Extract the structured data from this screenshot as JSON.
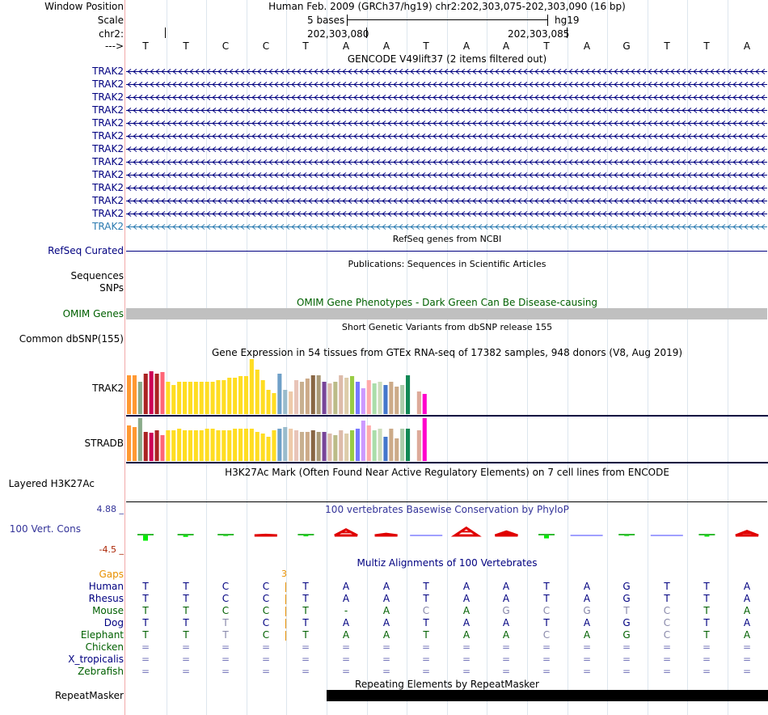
{
  "header": {
    "window_position_label": "Window Position",
    "scale_label": "Scale",
    "chrom_label": "chr2:",
    "strand_label": "--->",
    "assembly_position": "Human Feb. 2009 (GRCh37/hg19)   chr2:202,303,075-202,303,090 (16 bp)",
    "scale_text": "5 bases",
    "assembly_short": "hg19",
    "coord1": "202,303,080",
    "coord2": "202,303,085"
  },
  "bases": [
    "T",
    "T",
    "C",
    "C",
    "T",
    "A",
    "A",
    "T",
    "A",
    "A",
    "T",
    "A",
    "G",
    "T",
    "T",
    "A"
  ],
  "gencode": {
    "title": "GENCODE V49lift37 (2 items filtered out)",
    "items": [
      "TRAK2",
      "TRAK2",
      "TRAK2",
      "TRAK2",
      "TRAK2",
      "TRAK2",
      "TRAK2",
      "TRAK2",
      "TRAK2",
      "TRAK2",
      "TRAK2",
      "TRAK2",
      "TRAK2"
    ]
  },
  "refseq": {
    "label": "RefSeq Curated",
    "title": "RefSeq genes from NCBI"
  },
  "publications": {
    "title": "Publications: Sequences in Scientific Articles",
    "label": "Sequences"
  },
  "snps_label": "SNPs",
  "omim": {
    "label": "OMIM Genes",
    "title": "OMIM Gene Phenotypes - Dark Green Can Be Disease-causing",
    "bar_color": "#c0c0c0"
  },
  "dbsnp": {
    "label": "Common dbSNP(155)",
    "title": "Short Genetic Variants from dbSNP release 155"
  },
  "gtex": {
    "title": "Gene Expression in 54 tissues from GTEx RNA-seq of 17382 samples, 948 donors (V8, Aug 2019)",
    "tissue_colors": [
      "#ff9933",
      "#ff9933",
      "#8aab8a",
      "#aa2222",
      "#cc0055",
      "#aa2222",
      "#ff6677",
      "#ffdd22",
      "#ffdd22",
      "#ffdd22",
      "#ffdd22",
      "#ffdd22",
      "#ffdd22",
      "#ffdd22",
      "#ffdd22",
      "#ffdd22",
      "#ffdd22",
      "#ffdd22",
      "#ffdd22",
      "#ffdd22",
      "#ffdd22",
      "#ffdd22",
      "#ffdd22",
      "#ffdd22",
      "#ffdd22",
      "#ffdd22",
      "#ffdd22",
      "#6fa0c8",
      "#99bbcc",
      "#eecaaa",
      "#e8c4b8",
      "#c8b090",
      "#ccaa88",
      "#886644",
      "#aa9977",
      "#774499",
      "#ddbbaa",
      "#bbbb88",
      "#ddbbaa",
      "#ddccaa",
      "#99cc44",
      "#7777ff",
      "#cc99ff",
      "#ffaaaa",
      "#aaddaa",
      "#ccddbb",
      "#4477cc",
      "#ccaa88",
      "#ccaa88",
      "#aaccaa",
      "#118855",
      "#ffffff",
      "#ddaa99",
      "#ff00cc"
    ],
    "genes": [
      {
        "name": "TRAK2",
        "values": [
          48,
          48,
          40,
          50,
          53,
          50,
          52,
          40,
          36,
          40,
          40,
          40,
          40,
          40,
          40,
          40,
          42,
          42,
          45,
          45,
          47,
          47,
          68,
          55,
          42,
          30,
          26,
          50,
          30,
          28,
          42,
          40,
          44,
          48,
          48,
          40,
          38,
          40,
          48,
          45,
          47,
          40,
          32,
          42,
          38,
          40,
          36,
          40,
          34,
          36,
          48,
          40,
          28,
          25
        ]
      },
      {
        "name": "STRADB",
        "values": [
          44,
          42,
          53,
          36,
          35,
          38,
          32,
          38,
          38,
          40,
          38,
          38,
          38,
          38,
          40,
          40,
          38,
          38,
          38,
          40,
          40,
          40,
          40,
          36,
          34,
          30,
          38,
          40,
          42,
          40,
          38,
          36,
          36,
          38,
          36,
          36,
          34,
          32,
          38,
          34,
          38,
          40,
          50,
          44,
          38,
          40,
          30,
          40,
          28,
          40,
          40,
          42,
          38,
          53
        ]
      }
    ]
  },
  "h3k27ac": {
    "label": "Layered H3K27Ac",
    "title": "H3K27Ac Mark (Often Found Near Active Regulatory Elements) on 7 cell lines from ENCODE"
  },
  "phylop": {
    "label": "100 Vert. Cons",
    "title": "100 vertebrates Basewise Conservation by PhyloP",
    "y_max": "4.88 _",
    "y_min": "-4.5 _",
    "values": [
      -1.8,
      -0.5,
      -0.2,
      0.2,
      -0.3,
      2.3,
      0.6,
      0,
      2.9,
      1.5,
      -1.0,
      0,
      -0.2,
      0,
      -0.4,
      1.7
    ]
  },
  "multiz": {
    "title": "Multiz Alignments of 100 Vertebrates",
    "gaps_label": "Gaps",
    "gap_count": "3",
    "species": [
      {
        "name": "Human",
        "color": "#000080",
        "bases": [
          "T",
          "T",
          "C",
          "C",
          "T",
          "A",
          "A",
          "T",
          "A",
          "A",
          "T",
          "A",
          "G",
          "T",
          "T",
          "A"
        ]
      },
      {
        "name": "Rhesus",
        "color": "#000080",
        "bases": [
          "T",
          "T",
          "C",
          "C",
          "T",
          "A",
          "A",
          "T",
          "A",
          "A",
          "T",
          "A",
          "G",
          "T",
          "T",
          "A"
        ]
      },
      {
        "name": "Mouse",
        "color": "#006000",
        "bases": [
          "T",
          "T",
          "C",
          "C",
          "T",
          "-",
          "A",
          "C",
          "A",
          "G",
          "C",
          "G",
          "T",
          "C",
          "T",
          "A"
        ]
      },
      {
        "name": "Dog",
        "color": "#000080",
        "bases": [
          "T",
          "T",
          "T",
          "C",
          "T",
          "A",
          "A",
          "T",
          "A",
          "A",
          "T",
          "A",
          "G",
          "C",
          "T",
          "A"
        ]
      },
      {
        "name": "Elephant",
        "color": "#006000",
        "bases": [
          "T",
          "T",
          "T",
          "C",
          "T",
          "A",
          "A",
          "T",
          "A",
          "A",
          "C",
          "A",
          "G",
          "C",
          "T",
          "A"
        ]
      },
      {
        "name": "Chicken",
        "color": "#006000",
        "bases": [
          "=",
          "=",
          "=",
          "=",
          "=",
          "=",
          "=",
          "=",
          "=",
          "=",
          "=",
          "=",
          "=",
          "=",
          "=",
          "="
        ]
      },
      {
        "name": "X_tropicalis",
        "color": "#000080",
        "bases": [
          "=",
          "=",
          "=",
          "=",
          "=",
          "=",
          "=",
          "=",
          "=",
          "=",
          "=",
          "=",
          "=",
          "=",
          "=",
          "="
        ]
      },
      {
        "name": "Zebrafish",
        "color": "#006000",
        "bases": [
          "=",
          "=",
          "=",
          "=",
          "=",
          "=",
          "=",
          "=",
          "=",
          "=",
          "=",
          "=",
          "=",
          "=",
          "=",
          "="
        ]
      }
    ]
  },
  "repeatmasker": {
    "label": "RepeatMasker",
    "title": "Repeating Elements by RepeatMasker"
  }
}
